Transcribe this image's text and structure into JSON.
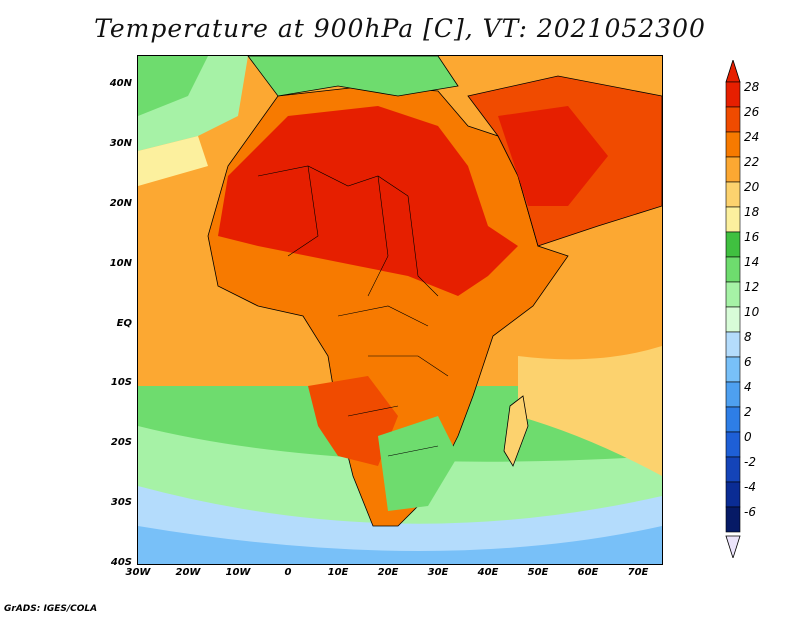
{
  "title": "Temperature at 900hPa [C], VT: 2021052300",
  "credit": "GrADS: IGES/COLA",
  "map": {
    "region": "Africa",
    "lon_range": [
      -30,
      75
    ],
    "lat_range": [
      -40,
      45
    ],
    "lat_labels": [
      "40N",
      "30N",
      "20N",
      "10N",
      "EQ",
      "10S",
      "20S",
      "30S",
      "40S"
    ],
    "lon_labels": [
      "30W",
      "20W",
      "10W",
      "0",
      "10E",
      "20E",
      "30E",
      "40E",
      "50E",
      "60E",
      "70E"
    ]
  },
  "colorbar": {
    "labels": [
      "28",
      "26",
      "24",
      "22",
      "20",
      "18",
      "16",
      "14",
      "12",
      "10",
      "8",
      "6",
      "4",
      "2",
      "0",
      "-2",
      "-4",
      "-6"
    ],
    "colors": [
      "#e61f00",
      "#f04b00",
      "#f77a00",
      "#fca832",
      "#fcd26e",
      "#fcf09e",
      "#40c040",
      "#6edc6e",
      "#a6f2a6",
      "#d8fcd8",
      "#b4dcfc",
      "#78c0f8",
      "#4ea0f0",
      "#2e7ee6",
      "#1e5fd6",
      "#1444b8",
      "#0a2c94",
      "#061a66"
    ]
  }
}
